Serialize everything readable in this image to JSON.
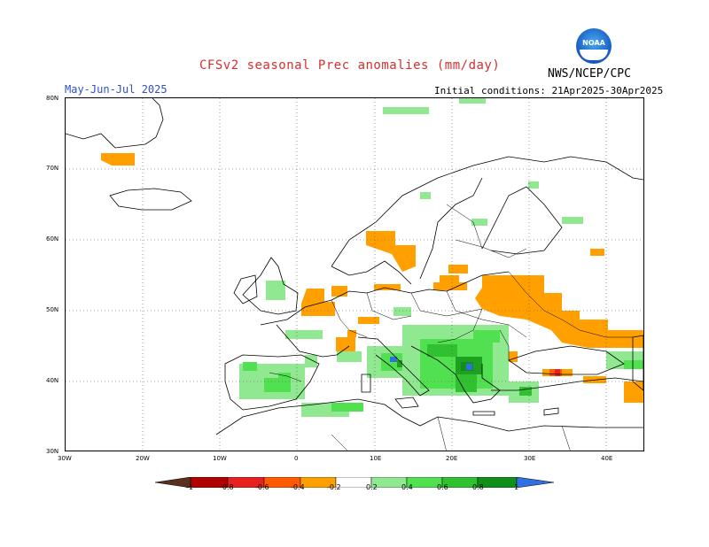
{
  "header": {
    "title": "CFSv2 seasonal Prec anomalies (mm/day)",
    "period": "May-Jun-Jul 2025",
    "initial_conditions": "Initial conditions: 21Apr2025-30Apr2025",
    "agency": "NWS/NCEP/CPC",
    "logo_text": "NOAA"
  },
  "map": {
    "lat_labels": [
      "80N",
      "70N",
      "60N",
      "50N",
      "40N",
      "30N"
    ],
    "lon_labels": [
      "30W",
      "20W",
      "10W",
      "0",
      "10E",
      "20E",
      "30E",
      "40E"
    ]
  },
  "legend": {
    "labels": [
      "-1",
      "-0.8",
      "-0.6",
      "-0.4",
      "-0.2",
      "0.2",
      "0.4",
      "0.6",
      "0.8",
      "1"
    ],
    "colors": [
      "#5a3020",
      "#b00000",
      "#e82020",
      "#ff5a00",
      "#ffa000",
      "#ffffff",
      "#90e890",
      "#50e050",
      "#30c030",
      "#20a020",
      "#10901a",
      "#3070e0"
    ]
  }
}
